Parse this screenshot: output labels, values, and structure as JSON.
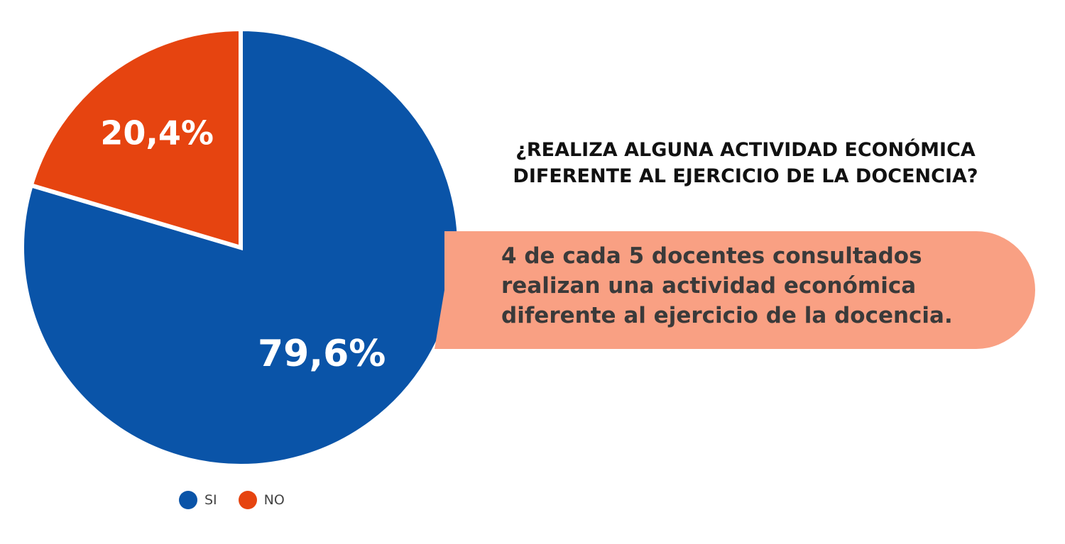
{
  "chart_data": {
    "type": "pie",
    "slices": [
      {
        "name": "SI",
        "value": 79.6,
        "label": "79,6%",
        "color": "#0a54a8"
      },
      {
        "name": "NO",
        "value": 20.4,
        "label": "20,4%",
        "color": "#e64410"
      }
    ],
    "legend": {
      "placement": "bottom",
      "items": [
        {
          "label": "SI",
          "color": "#0a54a8"
        },
        {
          "label": "NO",
          "color": "#e64410"
        }
      ]
    }
  },
  "question": {
    "line1": "¿REALIZA ALGUNA ACTIVIDAD ECONÓMICA",
    "line2": "DIFERENTE AL EJERCICIO DE LA DOCENCIA?"
  },
  "callout": {
    "color": "#f9a083",
    "line1": "4 de cada 5 docentes consultados",
    "line2": "realizan una actividad económica",
    "line3": "diferente al ejercicio de la docencia."
  }
}
